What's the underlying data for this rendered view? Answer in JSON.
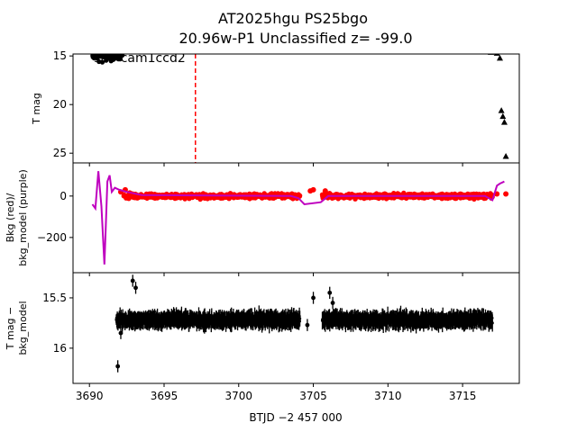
{
  "title": {
    "line1": "AT2025hgu  PS25bgo",
    "line2": "20.96w-P1 Unclassified z= -99.0"
  },
  "xlabel": "BTJD −2 457 000",
  "colors": {
    "flux": "#000000",
    "bkg": "#ff0000",
    "model": "#bf00bf",
    "marker_line": "#ff0000"
  },
  "chart_data": [
    {
      "panel": "top",
      "type": "scatter",
      "ylabel": "T mag",
      "xlim": [
        3688.9,
        3718.8
      ],
      "ylim": [
        26.0,
        14.8
      ],
      "inverted_y": true,
      "yticks": [
        15,
        20,
        25
      ],
      "annotation": "s88 cam1ccd2",
      "marker_line_x": 3697.1,
      "series": [
        {
          "kind": "dense",
          "segments": [
            {
              "x": [
                3690.2,
                3692.2
              ],
              "center": 14.8,
              "spread": 1.0
            },
            {
              "x": [
                3692.3,
                3704.1
              ],
              "center": 14.25,
              "spread": 0.3
            },
            {
              "x": [
                3704.6,
                3705.1
              ],
              "center": 14.3,
              "spread": 0.2
            },
            {
              "x": [
                3705.7,
                3717.0
              ],
              "center": 14.25,
              "spread": 0.3
            }
          ]
        },
        {
          "kind": "triangles",
          "x": [
            3690.3,
            3690.6,
            3691.0,
            3691.4,
            3691.8,
            3716.9,
            3717.1,
            3717.3,
            3717.5,
            3717.6,
            3717.7,
            3717.8,
            3717.9
          ],
          "y": [
            15.0,
            14.9,
            14.8,
            14.9,
            15.1,
            14.6,
            14.3,
            14.7,
            15.2,
            20.6,
            21.2,
            21.8,
            25.3
          ]
        }
      ]
    },
    {
      "panel": "middle",
      "type": "line",
      "ylabel": "Bkg (red)/\nbkg_model (purple)",
      "xlim": [
        3688.9,
        3718.8
      ],
      "ylim": [
        -370,
        160
      ],
      "yticks": [
        0,
        -200
      ],
      "model_x": [
        3690.2,
        3690.4,
        3690.6,
        3690.8,
        3691.0,
        3691.1,
        3691.2,
        3691.35,
        3691.5,
        3691.7,
        3692.0,
        3692.5,
        3693.5,
        3703.5,
        3704.0,
        3704.4,
        3705.5,
        3706.0,
        3716.5,
        3717.0,
        3717.3,
        3717.5,
        3717.8
      ],
      "model_y": [
        -40,
        -60,
        120,
        -50,
        -330,
        -140,
        70,
        100,
        20,
        40,
        30,
        20,
        5,
        0,
        -10,
        -40,
        -30,
        0,
        0,
        -20,
        50,
        60,
        70
      ],
      "bkg_segments": [
        {
          "x": [
            3692.3,
            3704.1
          ],
          "center": 0,
          "spread": 20
        },
        {
          "x": [
            3705.6,
            3717.0
          ],
          "center": 0,
          "spread": 20
        }
      ],
      "bkg_points": {
        "x": [
          3692.1,
          3692.4,
          3692.7,
          3704.8,
          3705.0,
          3705.8,
          3717.3,
          3717.9
        ],
        "y": [
          20,
          30,
          15,
          25,
          30,
          25,
          10,
          10
        ]
      }
    },
    {
      "panel": "bottom",
      "type": "errorbar",
      "ylabel": "T mag −\nbkg_model",
      "xlim": [
        3688.9,
        3718.8
      ],
      "ylim": [
        16.35,
        15.25
      ],
      "inverted_y": true,
      "yticks": [
        15.5,
        16.0
      ],
      "segments": [
        {
          "x": [
            3691.8,
            3704.1
          ],
          "center": 15.72,
          "spread": 0.12
        },
        {
          "x": [
            3705.6,
            3717.0
          ],
          "center": 15.72,
          "spread": 0.12
        }
      ],
      "outliers": {
        "x": [
          3691.9,
          3692.1,
          3692.9,
          3693.1,
          3704.6,
          3705.0,
          3706.1,
          3706.3
        ],
        "y": [
          16.18,
          15.85,
          15.33,
          15.4,
          15.77,
          15.5,
          15.45,
          15.55
        ]
      },
      "xticks": [
        3690,
        3695,
        3700,
        3705,
        3710,
        3715
      ]
    }
  ]
}
